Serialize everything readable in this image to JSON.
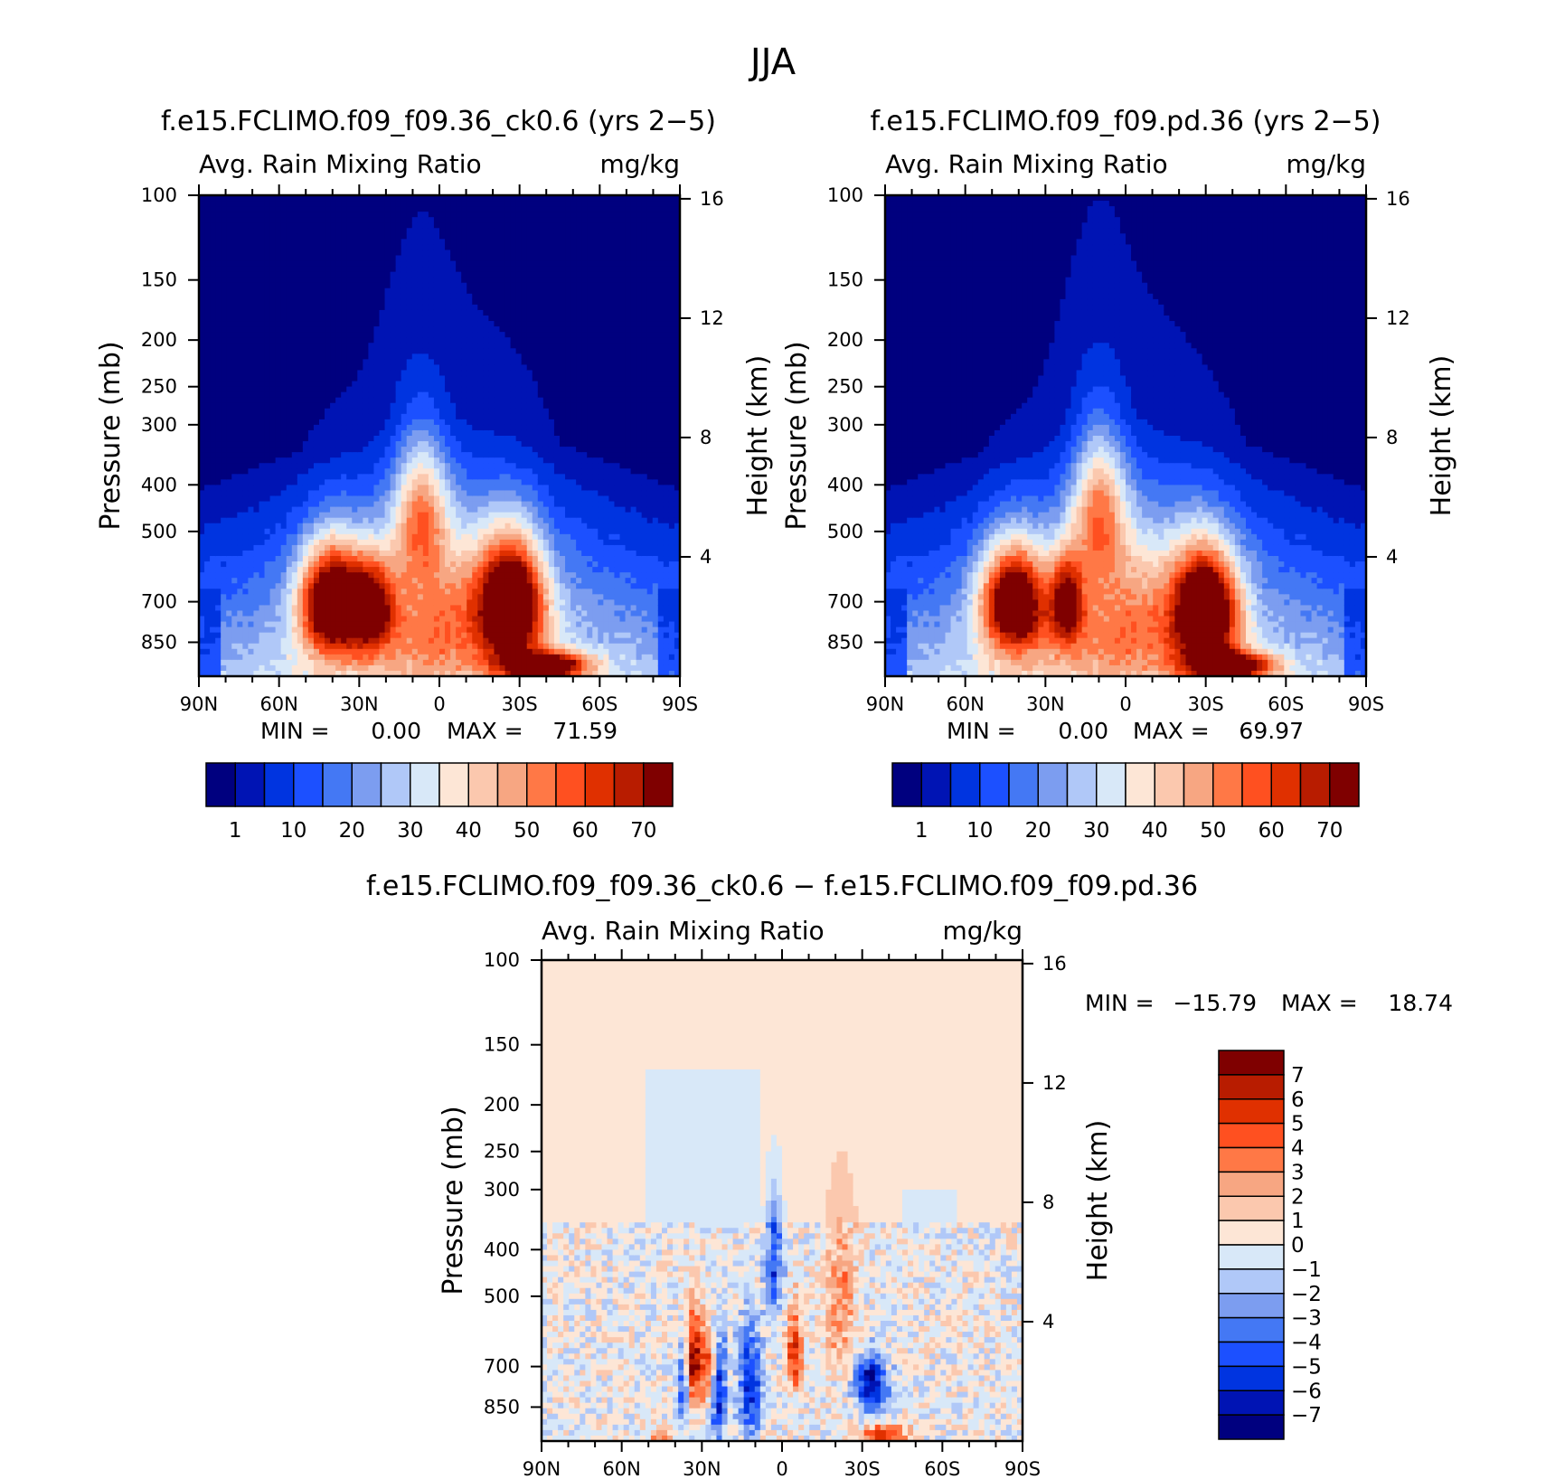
{
  "title": "JJA",
  "palettes": {
    "abs": [
      "#00007f",
      "#0014b4",
      "#0034e0",
      "#1c50ff",
      "#4478f4",
      "#7c9df0",
      "#b0c8f8",
      "#d8e8f8",
      "#fde6d6",
      "#fbc8ae",
      "#f7a682",
      "#ff7846",
      "#ff5020",
      "#e03000",
      "#b81c00",
      "#7f0000"
    ],
    "diff": [
      "#00007f",
      "#0014b4",
      "#0034e0",
      "#1c50ff",
      "#4478f4",
      "#7c9df0",
      "#b0c8f8",
      "#d8e8f8",
      "#fde6d6",
      "#fbc8ae",
      "#f7a682",
      "#ff7846",
      "#ff5020",
      "#e03000",
      "#b81c00",
      "#7f0000"
    ]
  },
  "shared_labels": {
    "ylabel_left": "Pressure (mb)",
    "ylabel_right": "Height (km)",
    "pressure_ticks": [
      "100",
      "150",
      "200",
      "250",
      "300",
      "400",
      "500",
      "700",
      "850"
    ],
    "height_ticks": [
      "16",
      "12",
      "8",
      "4"
    ],
    "lat_ticks": [
      "90N",
      "60N",
      "30N",
      "0",
      "30S",
      "60S",
      "90S"
    ],
    "min_label": "MIN =",
    "max_label": "MAX ="
  },
  "panels": [
    {
      "title": "f.e15.FCLIMO.f09_f09.36_ck0.6 (yrs 2−5)",
      "variable": "Avg. Rain Mixing Ratio",
      "units": "mg/kg",
      "min": "0.00",
      "max": "71.59",
      "colorbar_labels": [
        "1",
        "10",
        "20",
        "30",
        "40",
        "50",
        "60",
        "70"
      ]
    },
    {
      "title": "f.e15.FCLIMO.f09_f09.pd.36 (yrs 2−5)",
      "variable": "Avg. Rain Mixing Ratio",
      "units": "mg/kg",
      "min": "0.00",
      "max": "69.97",
      "colorbar_labels": [
        "1",
        "10",
        "20",
        "30",
        "40",
        "50",
        "60",
        "70"
      ]
    },
    {
      "title": "f.e15.FCLIMO.f09_f09.36_ck0.6 − f.e15.FCLIMO.f09_f09.pd.36",
      "variable": "Avg. Rain Mixing Ratio",
      "units": "mg/kg",
      "min": "−15.79",
      "max": "18.74",
      "colorbar_labels": [
        "7",
        "6",
        "5",
        "4",
        "3",
        "2",
        "1",
        "0",
        "−1",
        "−2",
        "−3",
        "−4",
        "−5",
        "−6",
        "−7"
      ]
    }
  ],
  "chart_data": [
    {
      "type": "heatmap",
      "title": "f.e15.FCLIMO.f09_f09.36_ck0.6 (yrs 2−5)",
      "subtitle": "Avg. Rain Mixing Ratio",
      "units": "mg/kg",
      "xlabel": "",
      "ylabel": "Pressure (mb)",
      "ylabel_right": "Height (km)",
      "x_ticks": [
        "90N",
        "60N",
        "30N",
        "0",
        "30S",
        "60S",
        "90S"
      ],
      "xlim": [
        90,
        -90
      ],
      "y_ticks": [
        100,
        150,
        200,
        250,
        300,
        400,
        500,
        700,
        850
      ],
      "y_scale": "log",
      "ylim": [
        100,
        1000
      ],
      "right_ticks_km": [
        16,
        12,
        8,
        4
      ],
      "levels": [
        1,
        5,
        10,
        15,
        20,
        25,
        30,
        35,
        40,
        45,
        50,
        55,
        60,
        65,
        70
      ],
      "min": 0.0,
      "max": 71.59,
      "features": [
        {
          "lat": 40,
          "p": 700,
          "value": 70,
          "lat_width": 12,
          "p_width": 180
        },
        {
          "lat": 25,
          "p": 720,
          "value": 40,
          "lat_width": 8,
          "p_width": 150
        },
        {
          "lat": -27,
          "p": 700,
          "value": 66,
          "lat_width": 12,
          "p_width": 200
        },
        {
          "lat": -40,
          "p": 950,
          "value": 60,
          "lat_width": 15,
          "p_width": 60
        },
        {
          "lat": 7,
          "p": 450,
          "value": 32,
          "lat_width": 10,
          "p_width": 160
        },
        {
          "lat": 0,
          "p": 720,
          "value": 24,
          "lat_width": 30,
          "p_width": 300
        }
      ]
    },
    {
      "type": "heatmap",
      "title": "f.e15.FCLIMO.f09_f09.pd.36 (yrs 2−5)",
      "subtitle": "Avg. Rain Mixing Ratio",
      "units": "mg/kg",
      "xlabel": "",
      "ylabel": "Pressure (mb)",
      "ylabel_right": "Height (km)",
      "x_ticks": [
        "90N",
        "60N",
        "30N",
        "0",
        "30S",
        "60S",
        "90S"
      ],
      "xlim": [
        90,
        -90
      ],
      "y_ticks": [
        100,
        150,
        200,
        250,
        300,
        400,
        500,
        700,
        850
      ],
      "y_scale": "log",
      "ylim": [
        100,
        1000
      ],
      "right_ticks_km": [
        16,
        12,
        8,
        4
      ],
      "levels": [
        1,
        5,
        10,
        15,
        20,
        25,
        30,
        35,
        40,
        45,
        50,
        55,
        60,
        65,
        70
      ],
      "min": 0.0,
      "max": 69.97,
      "features": [
        {
          "lat": 42,
          "p": 700,
          "value": 64,
          "lat_width": 12,
          "p_width": 180
        },
        {
          "lat": 22,
          "p": 700,
          "value": 40,
          "lat_width": 6,
          "p_width": 150
        },
        {
          "lat": -30,
          "p": 730,
          "value": 68,
          "lat_width": 12,
          "p_width": 200
        },
        {
          "lat": -40,
          "p": 950,
          "value": 55,
          "lat_width": 15,
          "p_width": 60
        },
        {
          "lat": 10,
          "p": 440,
          "value": 34,
          "lat_width": 10,
          "p_width": 160
        },
        {
          "lat": 0,
          "p": 720,
          "value": 24,
          "lat_width": 30,
          "p_width": 300
        }
      ]
    },
    {
      "type": "heatmap",
      "title": "f.e15.FCLIMO.f09_f09.36_ck0.6 − f.e15.FCLIMO.f09_f09.pd.36",
      "subtitle": "Avg. Rain Mixing Ratio",
      "units": "mg/kg",
      "xlabel": "",
      "ylabel": "Pressure (mb)",
      "ylabel_right": "Height (km)",
      "x_ticks": [
        "90N",
        "60N",
        "30N",
        "0",
        "30S",
        "60S",
        "90S"
      ],
      "xlim": [
        90,
        -90
      ],
      "y_ticks": [
        100,
        150,
        200,
        250,
        300,
        400,
        500,
        700,
        850
      ],
      "y_scale": "log",
      "ylim": [
        100,
        1000
      ],
      "right_ticks_km": [
        16,
        12,
        8,
        4
      ],
      "levels": [
        -7,
        -6,
        -5,
        -4,
        -3,
        -2,
        -1,
        0,
        1,
        2,
        3,
        4,
        5,
        6,
        7
      ],
      "min": -15.79,
      "max": 18.74,
      "features": [
        {
          "lat": 33,
          "p": 680,
          "value": 7,
          "lat_width": 3,
          "p_width": 160
        },
        {
          "lat": 27,
          "p": 700,
          "value": 6,
          "lat_width": 3,
          "p_width": 140
        },
        {
          "lat": 24,
          "p": 780,
          "value": -7,
          "lat_width": 3,
          "p_width": 200
        },
        {
          "lat": 37,
          "p": 770,
          "value": -5,
          "lat_width": 2,
          "p_width": 140
        },
        {
          "lat": 12,
          "p": 760,
          "value": -6,
          "lat_width": 4,
          "p_width": 200
        },
        {
          "lat": -5,
          "p": 650,
          "value": 6,
          "lat_width": 3,
          "p_width": 120
        },
        {
          "lat": 3,
          "p": 420,
          "value": -5,
          "lat_width": 3,
          "p_width": 120
        },
        {
          "lat": -33,
          "p": 760,
          "value": -7,
          "lat_width": 6,
          "p_width": 100
        },
        {
          "lat": -38,
          "p": 970,
          "value": 7,
          "lat_width": 8,
          "p_width": 40
        },
        {
          "lat": -22,
          "p": 500,
          "value": 3,
          "lat_width": 6,
          "p_width": 200
        },
        {
          "lat": 45,
          "p": 970,
          "value": 4,
          "lat_width": 4,
          "p_width": 40
        }
      ]
    }
  ]
}
